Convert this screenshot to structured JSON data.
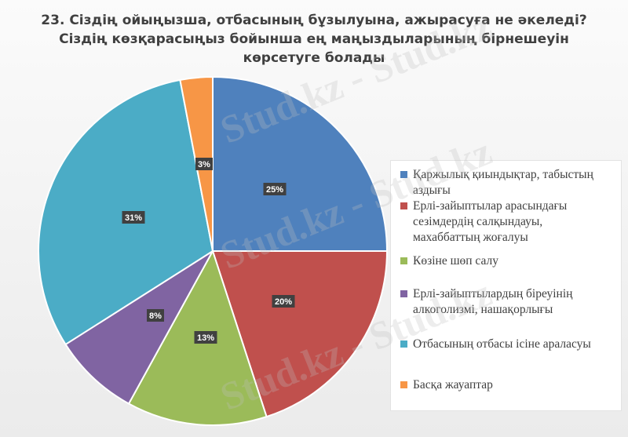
{
  "chart_data": {
    "type": "pie",
    "title_lines": [
      "23. Сіздің ойыңызша, отбасының бұзылуына, ажырасуға не әкеледі?",
      "Сіздің көзқарасыңыз бойынша ең маңыздыларының бірнешеуін",
      "көрсетуге болады"
    ],
    "categories": [
      "Қаржылық қиындықтар, табыстың аздығы",
      "Ерлі-зайыптылар арасындағы сезімдердің салқындауы, махаббаттың жоғалуы",
      "Көзіне шөп салу",
      "Ерлі-зайыптылардың біреуінің алкоголизмі, нашақорлығы",
      "Отбасының отбасы ісіне араласуы",
      "Басқа жауаптар"
    ],
    "values": [
      25,
      20,
      13,
      8,
      31,
      3
    ],
    "data_labels": [
      "25%",
      "20%",
      "13%",
      "8%",
      "31%",
      "3%"
    ],
    "colors": [
      "#4f81bd",
      "#c0504d",
      "#9bbb59",
      "#8064a2",
      "#4bacc6",
      "#f79646"
    ],
    "legend_position": "right"
  },
  "watermark_text": "Stud.kz - Stud.kz"
}
